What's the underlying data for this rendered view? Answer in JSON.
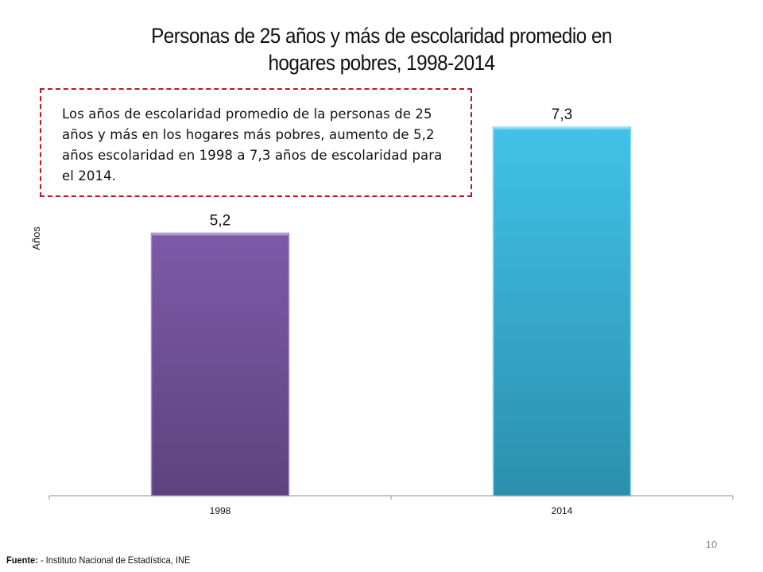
{
  "slide": {
    "title_line1": "Personas de 25 años y más de escolaridad promedio en",
    "title_line2": "hogares pobres, 1998-2014",
    "annotation": "Los años de escolaridad promedio de la personas de 25 años y más en los hogares más pobres, aumento de 5,2 años escolaridad en 1998 a 7,3 años de escolaridad para el 2014.",
    "source_label": "Fuente:",
    "source_text": " - Instituto Nacional de Estadística, INE",
    "page_number": "10"
  },
  "chart_data": {
    "type": "bar",
    "title": "Personas de 25 años y más de escolaridad promedio en hogares pobres, 1998-2014",
    "xlabel": "",
    "ylabel": "Años",
    "categories": [
      "1998",
      "2014"
    ],
    "values": [
      5.2,
      7.3
    ],
    "data_labels": [
      "5,2",
      "7,3"
    ],
    "ylim": [
      0,
      8.4
    ],
    "grid": false,
    "legend": "none",
    "colors": [
      "#7b5aa6",
      "#3bbde2"
    ]
  }
}
